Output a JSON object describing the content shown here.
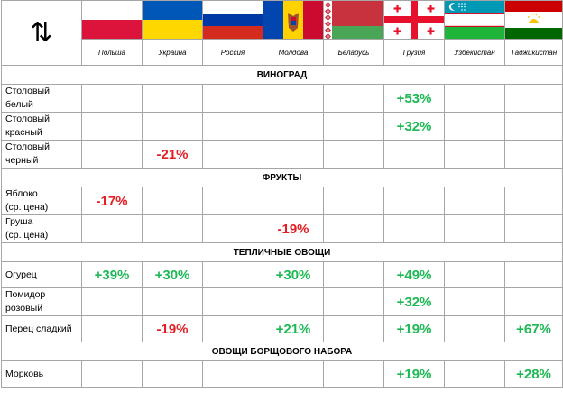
{
  "header": {
    "sort_glyph": "⇅",
    "countries": [
      {
        "name": "Польша",
        "flag": "poland-flag"
      },
      {
        "name": "Украина",
        "flag": "ukraine-flag"
      },
      {
        "name": "Россия",
        "flag": "russia-flag"
      },
      {
        "name": "Молдова",
        "flag": "moldova-flag"
      },
      {
        "name": "Беларусь",
        "flag": "belarus-flag"
      },
      {
        "name": "Грузия",
        "flag": "georgia-flag"
      },
      {
        "name": "Узбекистан",
        "flag": "uzbekistan-flag"
      },
      {
        "name": "Таджикистан",
        "flag": "tajikistan-flag"
      }
    ]
  },
  "colors": {
    "positive": "#1db954",
    "negative": "#e31e24"
  },
  "sections": [
    {
      "title": "ВИНОГРАД",
      "rows": [
        {
          "label": [
            "Столовый",
            "белый"
          ],
          "values": [
            "",
            "",
            "",
            "",
            "",
            "+53%",
            "",
            ""
          ]
        },
        {
          "label": [
            "Столовый",
            "красный"
          ],
          "values": [
            "",
            "",
            "",
            "",
            "",
            "+32%",
            "",
            ""
          ]
        },
        {
          "label": [
            "Столовый",
            "черный"
          ],
          "values": [
            "",
            "-21%",
            "",
            "",
            "",
            "",
            "",
            ""
          ]
        }
      ]
    },
    {
      "title": "ФРУКТЫ",
      "rows": [
        {
          "label": [
            "Яблоко",
            "(ср. цена)"
          ],
          "values": [
            "-17%",
            "",
            "",
            "",
            "",
            "",
            "",
            ""
          ]
        },
        {
          "label": [
            "Груша",
            "(ср. цена)"
          ],
          "values": [
            "",
            "",
            "",
            "-19%",
            "",
            "",
            "",
            ""
          ]
        }
      ]
    },
    {
      "title": "ТЕПЛИЧНЫЕ ОВОЩИ",
      "rows": [
        {
          "label": [
            "Огурец"
          ],
          "values": [
            "+39%",
            "+30%",
            "",
            "+30%",
            "",
            "+49%",
            "",
            ""
          ]
        },
        {
          "label": [
            "Помидор",
            "розовый"
          ],
          "values": [
            "",
            "",
            "",
            "",
            "",
            "+32%",
            "",
            ""
          ]
        },
        {
          "label": [
            "Перец сладкий"
          ],
          "values": [
            "",
            "-19%",
            "",
            "+21%",
            "",
            "+19%",
            "",
            "+67%"
          ]
        }
      ]
    },
    {
      "title": "ОВОЩИ БОРЩОВОГО НАБОРА",
      "rows": [
        {
          "label": [
            "Морковь"
          ],
          "values": [
            "",
            "",
            "",
            "",
            "",
            "+19%",
            "",
            "+28%"
          ]
        }
      ]
    }
  ]
}
